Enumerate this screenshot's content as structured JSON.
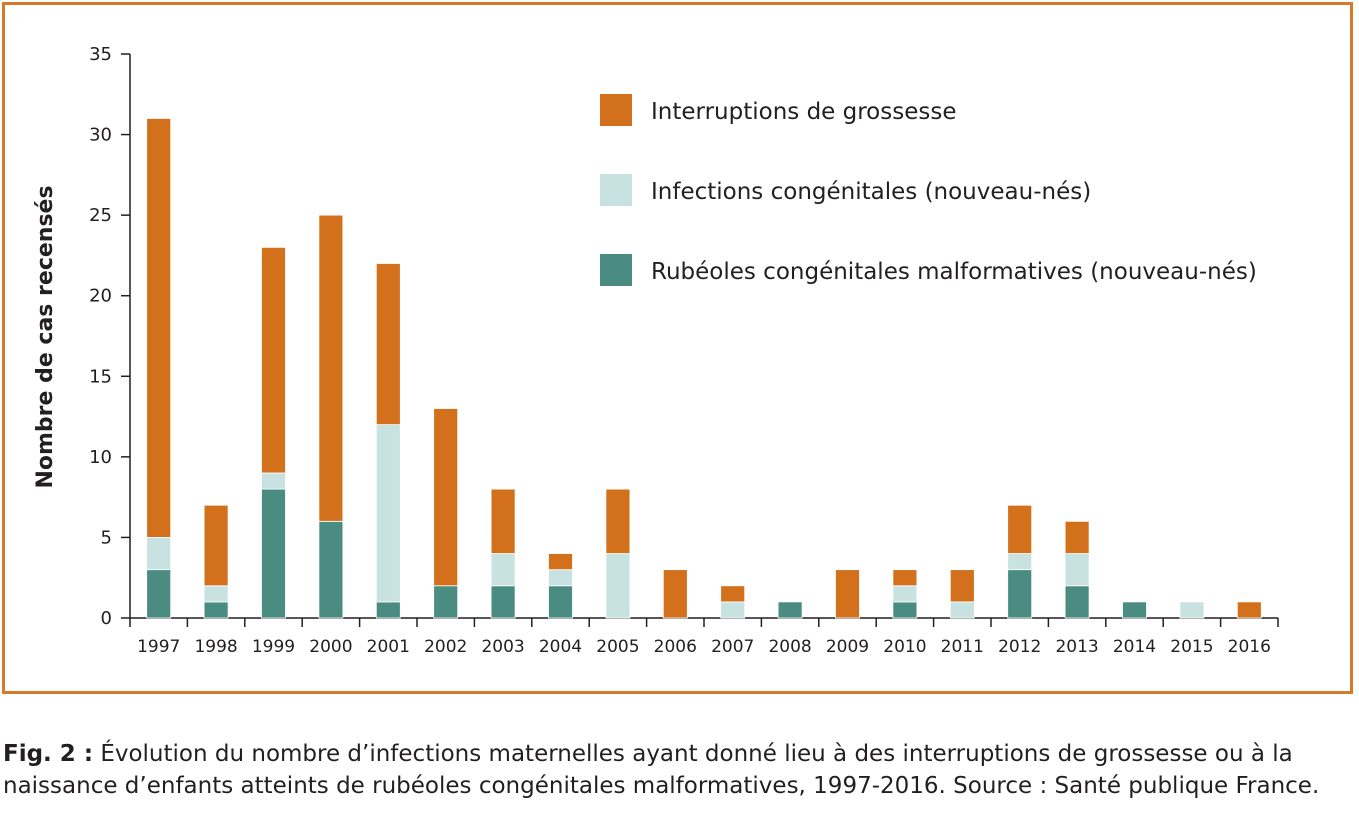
{
  "chart_data": {
    "type": "bar",
    "stacked": true,
    "categories": [
      "1997",
      "1998",
      "1999",
      "2000",
      "2001",
      "2002",
      "2003",
      "2004",
      "2005",
      "2006",
      "2007",
      "2008",
      "2009",
      "2010",
      "2011",
      "2012",
      "2013",
      "2014",
      "2015",
      "2016"
    ],
    "series": [
      {
        "name": "Rubéoles congénitales malformatives (nouveau-nés)",
        "color": "#4b8c82",
        "values": [
          3,
          1,
          8,
          6,
          1,
          2,
          2,
          2,
          0,
          0,
          0,
          1,
          0,
          1,
          0,
          3,
          2,
          1,
          0,
          0
        ]
      },
      {
        "name": "Infections congénitales (nouveau-nés)",
        "color": "#c8e2e1",
        "values": [
          2,
          1,
          1,
          0,
          11,
          0,
          2,
          1,
          4,
          0,
          1,
          0,
          0,
          1,
          1,
          1,
          2,
          0,
          1,
          0
        ]
      },
      {
        "name": "Interruptions de grossesse",
        "color": "#d2701b",
        "values": [
          26,
          5,
          14,
          19,
          10,
          11,
          4,
          1,
          4,
          3,
          1,
          0,
          3,
          1,
          2,
          3,
          2,
          0,
          0,
          1
        ]
      }
    ],
    "legend_order": [
      "Interruptions de grossesse",
      "Infections congénitales (nouveau-nés)",
      "Rubéoles congénitales malformatives (nouveau-nés)"
    ],
    "legend_position": "top-right",
    "ylabel": "Nombre de cas recensés",
    "xlabel": "",
    "ylim": [
      0,
      35
    ],
    "yticks": [
      0,
      5,
      10,
      15,
      20,
      25,
      30,
      35
    ],
    "grid": false
  },
  "caption": {
    "label": "Fig. 2 :",
    "text": " Évolution du nombre d’infections maternelles ayant donné lieu à des interruptions de grossesse ou à la naissance d’enfants atteints de rubéoles congénitales malformatives, 1997-2016. Source : Santé publique France."
  },
  "colors": {
    "frame": "#d97a2a"
  }
}
